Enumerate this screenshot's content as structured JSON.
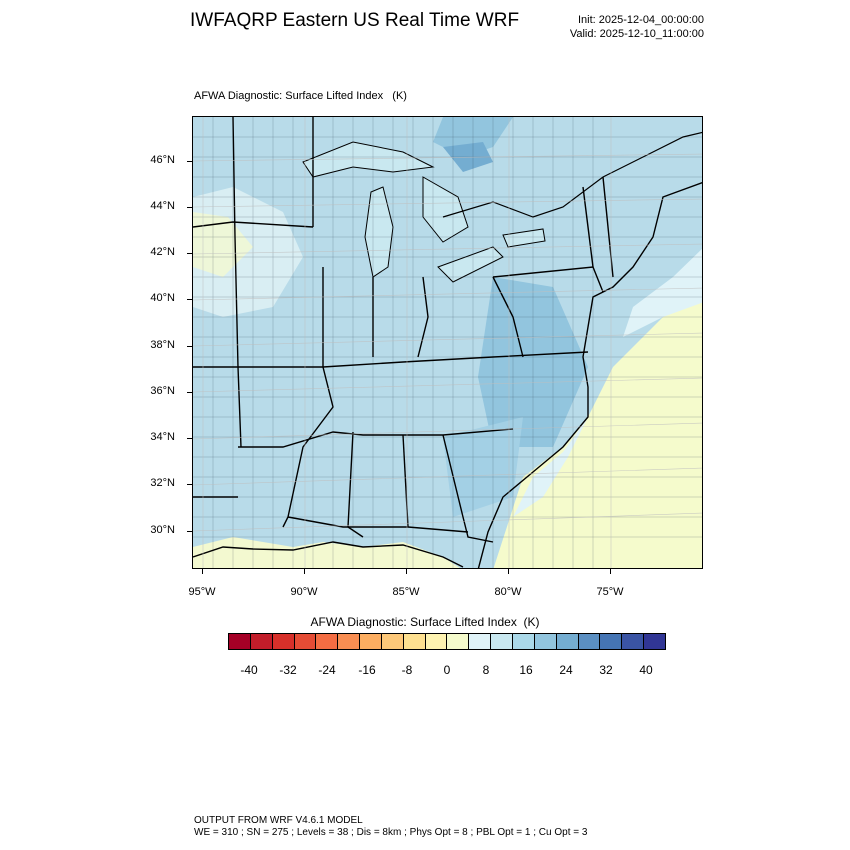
{
  "header": {
    "title": "IWFAQRP Eastern US Real Time WRF",
    "init": "Init: 2025-12-04_00:00:00",
    "valid": "Valid: 2025-12-10_11:00:00"
  },
  "plot": {
    "title": "AFWA Diagnostic: Surface Lifted Index   (K)",
    "lat_labels": [
      "46°N",
      "44°N",
      "42°N",
      "40°N",
      "38°N",
      "36°N",
      "34°N",
      "32°N",
      "30°N"
    ],
    "lon_labels": [
      "95°W",
      "90°W",
      "85°W",
      "80°W",
      "75°W"
    ]
  },
  "colorbar": {
    "title": "AFWA Diagnostic: Surface Lifted Index  (K)",
    "labels": [
      "-40",
      "-32",
      "-24",
      "-16",
      "-8",
      "0",
      "8",
      "16",
      "24",
      "32",
      "40"
    ],
    "colors": [
      "#a50026",
      "#c21d2a",
      "#d7302a",
      "#e54c35",
      "#f46d43",
      "#f98e52",
      "#fdae61",
      "#fdc879",
      "#fee090",
      "#fef3b1",
      "#f5fbcc",
      "#e0f3f8",
      "#c9e8f0",
      "#abd9e9",
      "#92c5de",
      "#74add1",
      "#5b8fc2",
      "#4575b4",
      "#3a54a4",
      "#313695"
    ]
  },
  "footer": {
    "line1": "OUTPUT FROM WRF V4.6.1 MODEL",
    "line2": "WE = 310 ; SN = 275 ; Levels = 38 ; Dis = 8km ; Phys Opt = 8 ; PBL Opt = 1 ; Cu Opt = 3"
  }
}
